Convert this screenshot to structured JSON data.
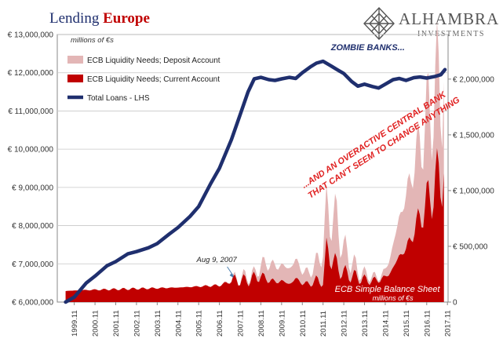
{
  "header": {
    "title_part1": "Lending ",
    "title_part2": "Europe",
    "logo_name": "ALHAMBRA",
    "logo_sub": "INVESTMENTS"
  },
  "chart_data": {
    "type": "area",
    "title": "Lending Europe",
    "units_label": "millions of €s",
    "units_label_bottom": "millions of €s",
    "x_ticks": [
      "1999.11",
      "2000.11",
      "2001.11",
      "2002.11",
      "2003.11",
      "2004.11",
      "2005.11",
      "2006.11",
      "2007.11",
      "2008.11",
      "2009.11",
      "2010.11",
      "2011.11",
      "2012.11",
      "2013.11",
      "2014.11",
      "2015.11",
      "2016.11",
      "2017.11"
    ],
    "y_left": {
      "ticks": [
        "€ 6,000,000",
        "€ 7,000,000",
        "€ 8,000,000",
        "€ 9,000,000",
        "€ 10,000,000",
        "€ 11,000,000",
        "€ 12,000,000",
        "€ 13,000,000"
      ],
      "lim": [
        6000000,
        13000000
      ]
    },
    "y_right": {
      "ticks": [
        "0",
        "€ 500,000",
        "€ 1,000,000",
        "€ 1,500,000",
        "€ 2,000,000"
      ],
      "lim": [
        0,
        2400000
      ]
    },
    "legend": [
      {
        "name": "ECB Liquidity Needs; Deposit Account",
        "color": "#e3b6b6"
      },
      {
        "name": "ECB Liquidity Needs; Current Account",
        "color": "#c00000"
      },
      {
        "name": "Total Loans - LHS",
        "color": "#1f2f6e"
      }
    ],
    "legend_position": "top-left",
    "grid": true,
    "series": [
      {
        "name": "Total Loans - LHS",
        "axis": "left",
        "x": [
          1999.5,
          1999.92,
          2000.5,
          2000.92,
          2001.5,
          2001.92,
          2002.5,
          2002.92,
          2003.5,
          2003.92,
          2004.5,
          2004.92,
          2005.5,
          2005.92,
          2006.5,
          2006.92,
          2007.5,
          2007.92,
          2008.3,
          2008.6,
          2008.92,
          2009.3,
          2009.6,
          2009.92,
          2010.3,
          2010.6,
          2010.92,
          2011.3,
          2011.6,
          2011.92,
          2012.3,
          2012.6,
          2012.92,
          2013.3,
          2013.6,
          2013.92,
          2014.3,
          2014.6,
          2014.92,
          2015.3,
          2015.6,
          2015.92,
          2016.3,
          2016.6,
          2016.92,
          2017.3,
          2017.6,
          2017.8
        ],
        "values": [
          6000000,
          6130000,
          6500000,
          6680000,
          6950000,
          7060000,
          7260000,
          7320000,
          7420000,
          7530000,
          7780000,
          7950000,
          8240000,
          8500000,
          9100000,
          9500000,
          10250000,
          10900000,
          11500000,
          11840000,
          11880000,
          11820000,
          11800000,
          11840000,
          11880000,
          11850000,
          12000000,
          12150000,
          12250000,
          12300000,
          12180000,
          12080000,
          11980000,
          11770000,
          11650000,
          11700000,
          11640000,
          11600000,
          11700000,
          11820000,
          11850000,
          11800000,
          11870000,
          11890000,
          11860000,
          11900000,
          11950000,
          12080000
        ]
      },
      {
        "name": "ECB Liquidity Needs; Deposit Account",
        "axis": "right",
        "x": [
          1999.5,
          2000.92,
          2002.92,
          2004.92,
          2006.92,
          2007.6,
          2007.92,
          2008.3,
          2008.6,
          2008.92,
          2009.3,
          2009.6,
          2009.92,
          2010.3,
          2010.6,
          2010.92,
          2011.3,
          2011.6,
          2011.92,
          2012.1,
          2012.3,
          2012.6,
          2012.92,
          2013.3,
          2013.6,
          2013.92,
          2014.3,
          2014.6,
          2014.92,
          2015.3,
          2015.6,
          2015.92,
          2016.3,
          2016.6,
          2016.92,
          2017.3,
          2017.6,
          2017.8
        ],
        "values": [
          100000,
          110000,
          120000,
          130000,
          150000,
          200000,
          220000,
          230000,
          250000,
          330000,
          350000,
          320000,
          330000,
          300000,
          380000,
          280000,
          260000,
          360000,
          460000,
          850000,
          780000,
          720000,
          470000,
          370000,
          280000,
          250000,
          230000,
          220000,
          280000,
          500000,
          770000,
          940000,
          1240000,
          1420000,
          1640000,
          1860000,
          2000000,
          2180000
        ]
      },
      {
        "name": "ECB Liquidity Needs; Current Account",
        "axis": "right",
        "x": [
          1999.5,
          2000.92,
          2002.92,
          2004.92,
          2006.92,
          2007.6,
          2007.92,
          2008.3,
          2008.6,
          2008.92,
          2009.3,
          2009.6,
          2009.92,
          2010.3,
          2010.6,
          2010.92,
          2011.3,
          2011.6,
          2011.92,
          2012.1,
          2012.3,
          2012.6,
          2012.92,
          2013.3,
          2013.6,
          2013.92,
          2014.3,
          2014.6,
          2014.92,
          2015.3,
          2015.6,
          2015.92,
          2016.3,
          2016.6,
          2016.92,
          2017.3,
          2017.6,
          2017.8
        ],
        "values": [
          100000,
          110000,
          120000,
          130000,
          150000,
          190000,
          200000,
          190000,
          220000,
          230000,
          200000,
          180000,
          190000,
          160000,
          210000,
          170000,
          160000,
          200000,
          170000,
          490000,
          400000,
          320000,
          260000,
          240000,
          220000,
          200000,
          190000,
          200000,
          220000,
          300000,
          420000,
          470000,
          640000,
          760000,
          890000,
          1040000,
          1150000,
          1260000
        ]
      }
    ],
    "annotations": [
      {
        "text": "ZOMBIE BANKS...",
        "x": 2012.3,
        "y_right": 2260000
      },
      {
        "text": "...AND AN OVERACTIVE CENTRAL BANK",
        "x": 2011.0,
        "y_right": 1020000
      },
      {
        "text": "THAT CAN'T SEEM TO CHANGE ANYTHING",
        "x": 2011.0,
        "y_right": 880000
      },
      {
        "text": "Aug 9, 2007",
        "x": 2007.6
      },
      {
        "text": "ECB Simple Balance Sheet",
        "x": 2014.0
      }
    ]
  }
}
